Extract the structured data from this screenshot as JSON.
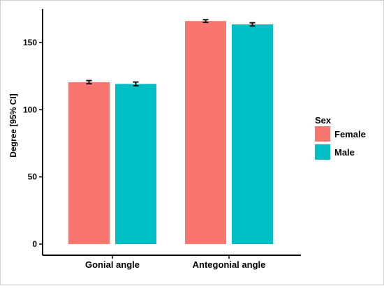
{
  "chart_data": {
    "type": "bar",
    "categories": [
      "Gonial angle",
      "Antegonial angle"
    ],
    "series": [
      {
        "name": "Female",
        "color": "#F8766D",
        "values": [
          120.5,
          166.0
        ],
        "ci_low": [
          119.3,
          165.0
        ],
        "ci_high": [
          121.7,
          167.0
        ]
      },
      {
        "name": "Male",
        "color": "#00BFC4",
        "values": [
          119.2,
          163.5
        ],
        "ci_low": [
          117.8,
          162.3
        ],
        "ci_high": [
          120.6,
          164.7
        ]
      }
    ],
    "title": "",
    "xlabel": "",
    "ylabel": "Degree [95% CI]",
    "ylim": [
      0,
      176
    ],
    "yticks": [
      0,
      50,
      100,
      150
    ],
    "grid": false,
    "error_bars": true,
    "legend": {
      "title": "Sex",
      "placement": "right"
    }
  }
}
